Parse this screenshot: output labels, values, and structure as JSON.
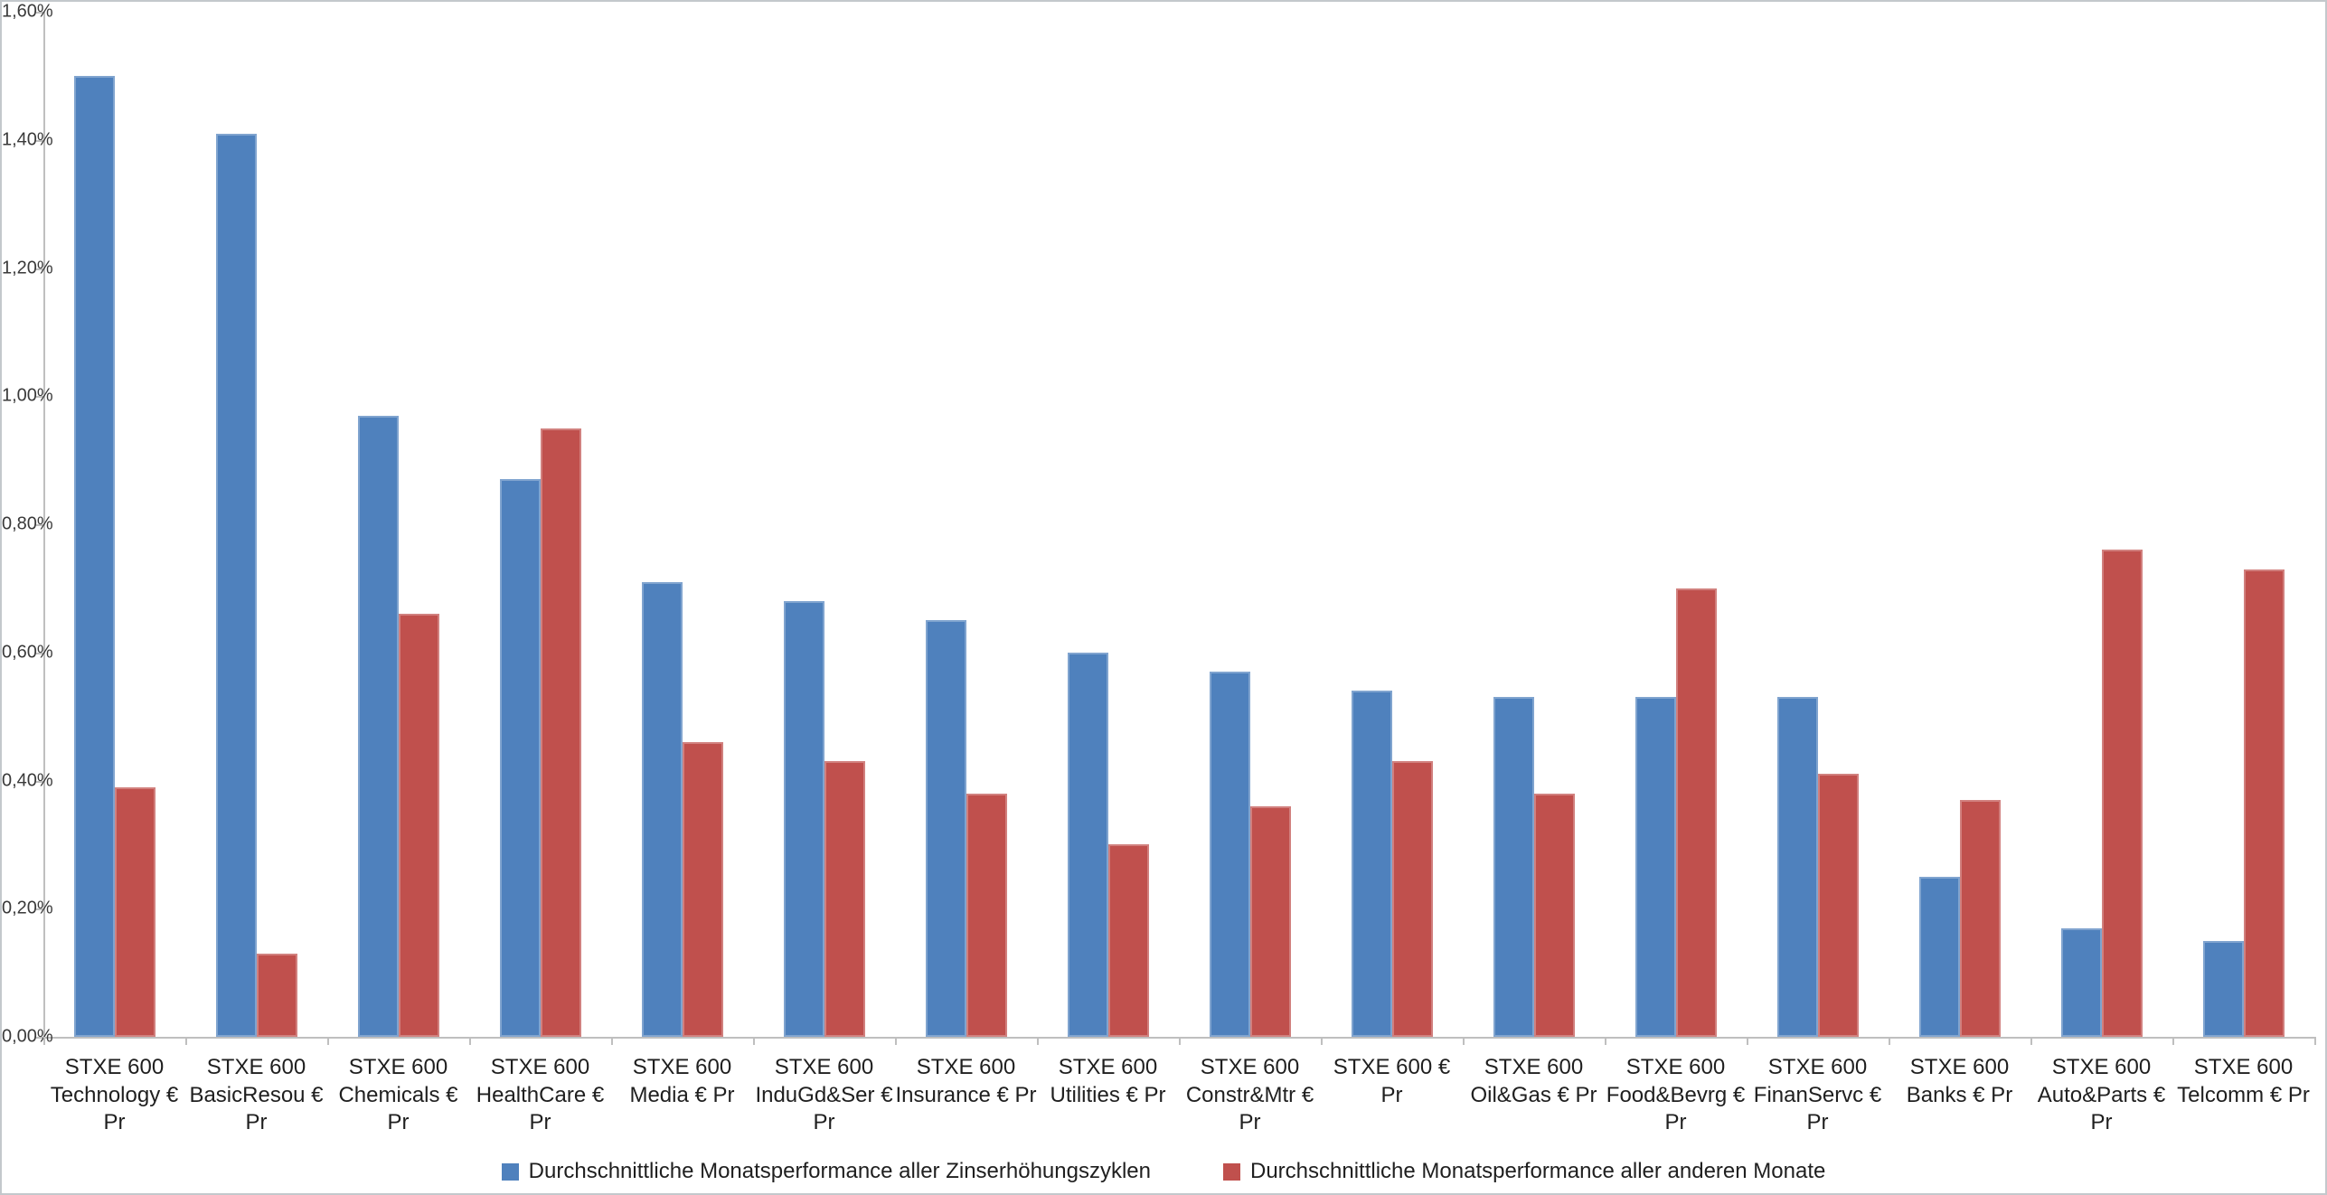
{
  "chart_data": {
    "type": "bar",
    "title": "",
    "xlabel": "",
    "ylabel": "",
    "categories": [
      "STXE 600 Technology € Pr",
      "STXE 600 BasicResou € Pr",
      "STXE 600 Chemicals € Pr",
      "STXE 600 HealthCare € Pr",
      "STXE 600 Media € Pr",
      "STXE 600 InduGd&Ser € Pr",
      "STXE 600 Insurance € Pr",
      "STXE 600 Utilities € Pr",
      "STXE 600 Constr&Mtr € Pr",
      "STXE 600 € Pr",
      "STXE 600 Oil&Gas € Pr",
      "STXE 600 Food&Bevrg € Pr",
      "STXE 600 FinanServc € Pr",
      "STXE 600 Banks € Pr",
      "STXE 600 Auto&Parts € Pr",
      "STXE 600 Telcomm € Pr"
    ],
    "series": [
      {
        "name": "Durchschnittliche Monatsperformance aller Zinserhöhungszyklen",
        "color": "#4F81BD",
        "values": [
          1.5,
          1.41,
          0.97,
          0.87,
          0.71,
          0.68,
          0.65,
          0.6,
          0.57,
          0.54,
          0.53,
          0.53,
          0.53,
          0.25,
          0.17,
          0.15
        ]
      },
      {
        "name": "Durchschnittliche Monatsperformance aller anderen Monate",
        "color": "#C0504D",
        "values": [
          0.39,
          0.13,
          0.66,
          0.95,
          0.46,
          0.43,
          0.38,
          0.3,
          0.36,
          0.43,
          0.38,
          0.7,
          0.41,
          0.37,
          0.76,
          0.73
        ]
      }
    ],
    "ylim": [
      0,
      1.6
    ],
    "ytick_step": 0.2,
    "ytick_labels": [
      "0,00%",
      "0,20%",
      "0,40%",
      "0,60%",
      "0,80%",
      "1,00%",
      "1,20%",
      "1,40%",
      "1,60%"
    ],
    "value_unit": "percent",
    "grid": false,
    "legend_position": "bottom",
    "axis_color": "#BFBFBF"
  }
}
